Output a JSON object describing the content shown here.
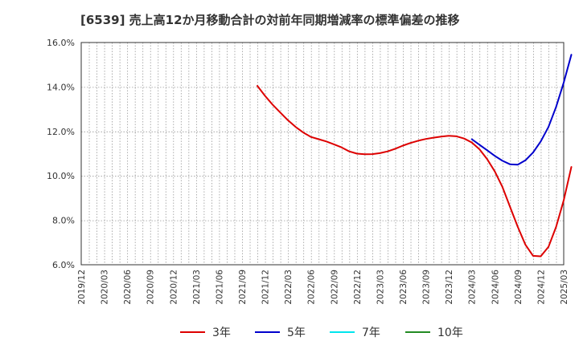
{
  "chart_data": {
    "type": "line",
    "title": "[6539]  売上高12か月移動合計の対前年同期増減率の標準偏差の推移",
    "xlabel": "",
    "ylabel": "",
    "ylim": [
      6.0,
      16.0
    ],
    "y_ticks": [
      "6.0%",
      "8.0%",
      "10.0%",
      "12.0%",
      "14.0%",
      "16.0%"
    ],
    "y_tick_values": [
      6,
      8,
      10,
      12,
      14,
      16
    ],
    "x_tick_labels": [
      "2019/12",
      "2020/03",
      "2020/06",
      "2020/09",
      "2020/12",
      "2021/03",
      "2021/06",
      "2021/09",
      "2021/12",
      "2022/03",
      "2022/06",
      "2022/09",
      "2022/12",
      "2023/03",
      "2023/06",
      "2023/09",
      "2023/12",
      "2024/03",
      "2024/06",
      "2024/09",
      "2024/12",
      "2025/03"
    ],
    "x_range_months": [
      0,
      63
    ],
    "grid": true,
    "legend_position": "bottom",
    "series": [
      {
        "name": "3年",
        "color": "#dd0000",
        "x": [
          23,
          24,
          25,
          26,
          27,
          28,
          29,
          30,
          31,
          32,
          33,
          34,
          35,
          36,
          37,
          38,
          39,
          40,
          41,
          42,
          43,
          44,
          45,
          46,
          47,
          48,
          49,
          50,
          51,
          52,
          53,
          54,
          55,
          56,
          57,
          58,
          59,
          60,
          61,
          62,
          63,
          64
        ],
        "values": [
          14.05,
          13.6,
          13.2,
          12.85,
          12.5,
          12.2,
          11.95,
          11.75,
          11.65,
          11.55,
          11.42,
          11.28,
          11.1,
          11.0,
          10.97,
          10.98,
          11.02,
          11.1,
          11.22,
          11.36,
          11.48,
          11.58,
          11.66,
          11.72,
          11.77,
          11.8,
          11.78,
          11.68,
          11.5,
          11.2,
          10.75,
          10.2,
          9.5,
          8.6,
          7.7,
          6.9,
          6.4,
          6.38,
          6.8,
          7.7,
          8.9,
          10.4
        ]
      },
      {
        "name": "5年",
        "color": "#0000cc",
        "x": [
          51,
          52,
          53,
          54,
          55,
          56,
          57,
          58,
          59,
          60,
          61,
          62,
          63,
          64
        ],
        "values": [
          11.65,
          11.4,
          11.15,
          10.9,
          10.68,
          10.52,
          10.5,
          10.7,
          11.05,
          11.55,
          12.2,
          13.1,
          14.2,
          15.45
        ]
      },
      {
        "name": "7年",
        "color": "#00e5ee",
        "x": [],
        "values": []
      },
      {
        "name": "10年",
        "color": "#228b22",
        "x": [],
        "values": []
      }
    ]
  }
}
